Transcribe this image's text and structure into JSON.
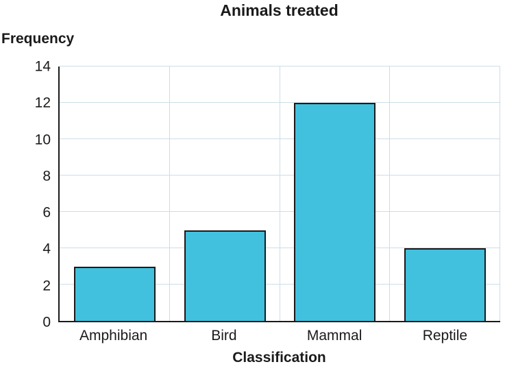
{
  "chart_data": {
    "type": "bar",
    "title": "Animals treated",
    "xlabel": "Classification",
    "ylabel": "Frequency",
    "categories": [
      "Amphibian",
      "Bird",
      "Mammal",
      "Reptile"
    ],
    "values": [
      3,
      5,
      12,
      4
    ],
    "ylim": [
      0,
      14
    ],
    "ytick_step": 2,
    "grid": "on",
    "legend": "none",
    "colors": {
      "bar_fill": "#41c1dd",
      "bar_border": "#1a1a1a",
      "grid_line": "#ccdde6",
      "axis_line": "#1a1a1a",
      "text": "#1a1a1a"
    }
  }
}
